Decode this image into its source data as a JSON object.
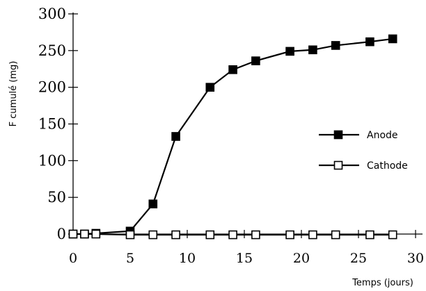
{
  "chart_data": {
    "type": "line",
    "title": "",
    "xlabel": "Temps (jours)",
    "ylabel": "F cumulé (mg)",
    "xlim": [
      0,
      30
    ],
    "ylim": [
      0,
      300
    ],
    "xticks": [
      0,
      5,
      10,
      15,
      20,
      25,
      30
    ],
    "xtick_labels": [
      "0",
      "5",
      "10",
      "15",
      "20",
      "25",
      "30"
    ],
    "yticks": [
      0,
      50,
      100,
      150,
      200,
      250,
      300
    ],
    "ytick_labels": [
      "0",
      "50",
      "100",
      "150",
      "200",
      "250",
      "300"
    ],
    "grid": false,
    "legend_position": "right",
    "series": [
      {
        "name": "Anode",
        "marker": "filled-square",
        "color": "#000000",
        "x": [
          0,
          1,
          2,
          5,
          7,
          9,
          12,
          14,
          16,
          19,
          21,
          23,
          26,
          28
        ],
        "y": [
          0,
          0,
          1,
          4,
          41,
          133,
          200,
          224,
          236,
          249,
          251,
          257,
          262,
          266
        ]
      },
      {
        "name": "Cathode",
        "marker": "open-square",
        "color": "#000000",
        "x": [
          0,
          1,
          2,
          5,
          7,
          9,
          12,
          14,
          16,
          19,
          21,
          23,
          26,
          28
        ],
        "y": [
          0,
          0,
          0,
          -1,
          -1,
          -1,
          -1,
          -1,
          -1,
          -1,
          -1,
          -1,
          -1,
          -1
        ]
      }
    ]
  }
}
